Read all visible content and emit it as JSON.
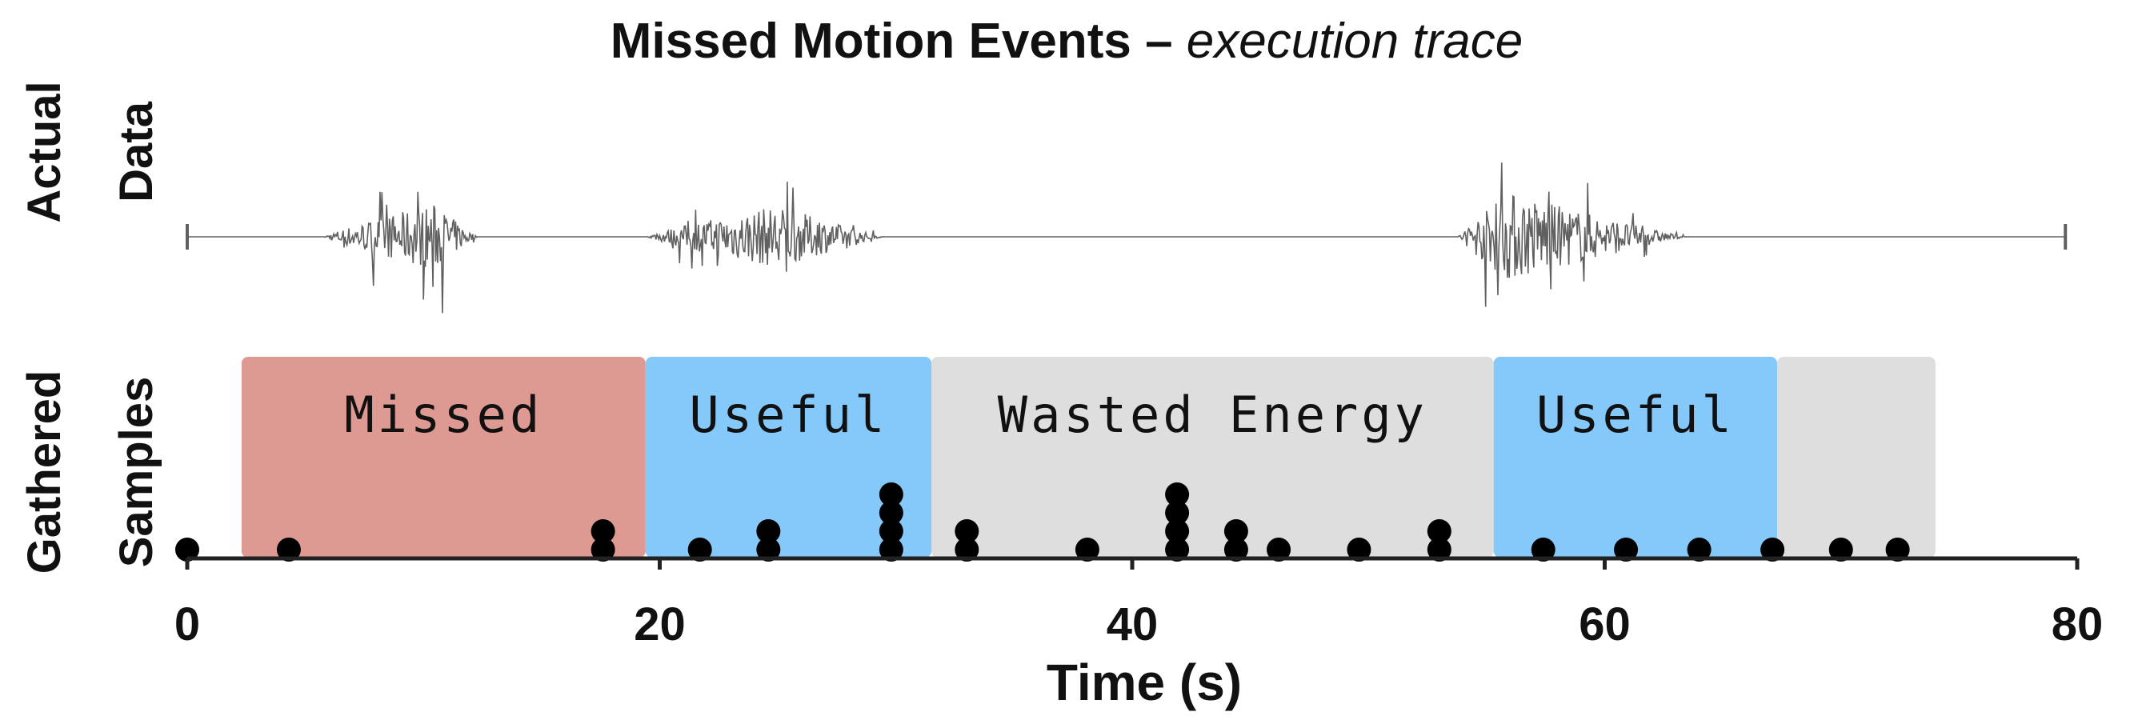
{
  "chart_data": {
    "type": "scatter",
    "title": "Missed Motion Events",
    "subtitle": "execution trace",
    "xlabel": "Time (s)",
    "xlim": [
      0,
      80
    ],
    "xticks": [
      0,
      20,
      40,
      60,
      80
    ],
    "panels": {
      "top": {
        "ylabel_line1": "Actual",
        "ylabel_line2": "Data"
      },
      "bottom": {
        "ylabel_line1": "Gathered",
        "ylabel_line2": "Samples"
      }
    },
    "actual_data": {
      "range": [
        0,
        79.5
      ],
      "bursts": [
        {
          "start": 5.8,
          "end": 12.3,
          "peak": 10.5,
          "amplitude": 1.0
        },
        {
          "start": 19.5,
          "end": 29.5,
          "peak": 25.0,
          "amplitude": 0.95
        },
        {
          "start": 53.8,
          "end": 63.5,
          "peak": 56.0,
          "amplitude": 1.35
        }
      ]
    },
    "regions": [
      {
        "label": "Missed",
        "start": 2.3,
        "end": 19.4,
        "color": "#de9a92"
      },
      {
        "label": "Useful",
        "start": 19.4,
        "end": 31.5,
        "color": "#85c8fa"
      },
      {
        "label": "Wasted Energy",
        "start": 31.5,
        "end": 55.3,
        "color": "#dedede"
      },
      {
        "label": "Useful",
        "start": 55.3,
        "end": 67.3,
        "color": "#85c8fa"
      },
      {
        "label": "",
        "start": 67.3,
        "end": 74.0,
        "color": "#dedede"
      }
    ],
    "samples": [
      {
        "x": 0.0,
        "count": 1
      },
      {
        "x": 4.3,
        "count": 1
      },
      {
        "x": 17.6,
        "count": 2
      },
      {
        "x": 21.7,
        "count": 1
      },
      {
        "x": 24.6,
        "count": 2
      },
      {
        "x": 29.8,
        "count": 4
      },
      {
        "x": 33.0,
        "count": 2
      },
      {
        "x": 38.1,
        "count": 1
      },
      {
        "x": 41.9,
        "count": 4
      },
      {
        "x": 44.4,
        "count": 2
      },
      {
        "x": 46.2,
        "count": 1
      },
      {
        "x": 49.6,
        "count": 1
      },
      {
        "x": 53.0,
        "count": 2
      },
      {
        "x": 57.4,
        "count": 1
      },
      {
        "x": 60.9,
        "count": 1
      },
      {
        "x": 64.0,
        "count": 1
      },
      {
        "x": 67.1,
        "count": 1
      },
      {
        "x": 70.0,
        "count": 1
      },
      {
        "x": 72.4,
        "count": 1
      }
    ],
    "colors": {
      "signal": "#606060",
      "axis": "#222222",
      "marker": "#000000"
    }
  }
}
